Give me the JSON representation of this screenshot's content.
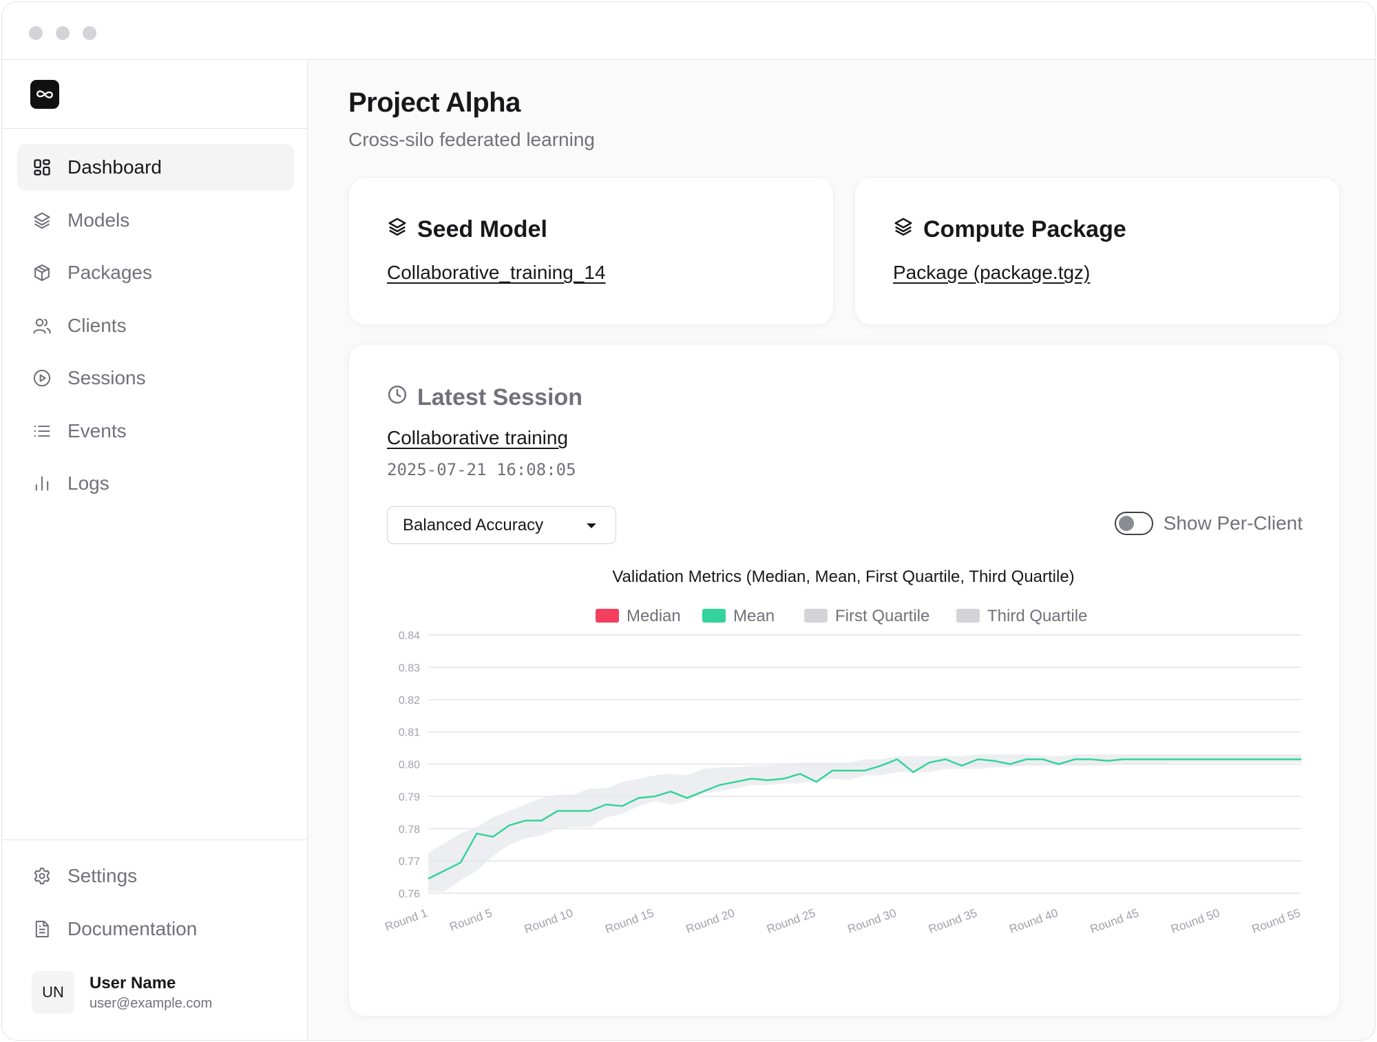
{
  "sidebar": {
    "logo_icon": "infinity-logo-icon",
    "nav": [
      {
        "label": "Dashboard",
        "icon": "dashboard-icon",
        "active": true
      },
      {
        "label": "Models",
        "icon": "layers-icon"
      },
      {
        "label": "Packages",
        "icon": "package-icon"
      },
      {
        "label": "Clients",
        "icon": "users-icon"
      },
      {
        "label": "Sessions",
        "icon": "play-circle-icon"
      },
      {
        "label": "Events",
        "icon": "list-icon"
      },
      {
        "label": "Logs",
        "icon": "bar-chart-icon"
      }
    ],
    "bottom": [
      {
        "label": "Settings",
        "icon": "gear-icon"
      },
      {
        "label": "Documentation",
        "icon": "document-icon"
      }
    ],
    "user": {
      "initials": "UN",
      "name": "User Name",
      "email": "user@example.com"
    }
  },
  "header": {
    "title": "Project Alpha",
    "subtitle": "Cross-silo federated learning"
  },
  "seed_model": {
    "title": "Seed Model",
    "link": "Collaborative_training_14"
  },
  "compute_package": {
    "title": "Compute Package",
    "link": "Package (package.tgz)"
  },
  "latest_session": {
    "title": "Latest Session",
    "link": "Collaborative training",
    "timestamp": "2025-07-21 16:08:05",
    "metric_selected": "Balanced Accuracy",
    "toggle_label": "Show Per-Client",
    "toggle_on": false
  },
  "chart_data": {
    "type": "line",
    "title": "Validation Metrics (Median, Mean, First Quartile, Third Quartile)",
    "legend": [
      {
        "name": "Median",
        "color": "#f43f5e"
      },
      {
        "name": "Mean",
        "color": "#34d399"
      },
      {
        "name": "First Quartile",
        "color": "#d4d4d8"
      },
      {
        "name": "Third Quartile",
        "color": "#d4d4d8"
      }
    ],
    "legend_placement": "top-center",
    "ylim": [
      0.76,
      0.84
    ],
    "yticks": [
      "0.84",
      "0.83",
      "0.82",
      "0.81",
      "0.80",
      "0.79",
      "0.78",
      "0.77",
      "0.76"
    ],
    "x_labels": [
      "Round 1",
      "Round 5",
      "Round 10",
      "Round 15",
      "Round 20",
      "Round 25",
      "Round 30",
      "Round 35",
      "Round 40",
      "Round 45",
      "Round 50",
      "Round 55"
    ],
    "x_label_rounds": [
      1,
      5,
      10,
      15,
      20,
      25,
      30,
      35,
      40,
      45,
      50,
      55
    ],
    "rounds": 55,
    "grid": true,
    "series": [
      {
        "name": "Mean",
        "color": "#34d399",
        "values": [
          0.7645,
          0.767,
          0.7695,
          0.7785,
          0.7775,
          0.781,
          0.7825,
          0.7825,
          0.7855,
          0.7855,
          0.7855,
          0.7875,
          0.787,
          0.7895,
          0.79,
          0.7915,
          0.7895,
          0.7915,
          0.7935,
          0.7945,
          0.7955,
          0.795,
          0.7955,
          0.797,
          0.7945,
          0.798,
          0.798,
          0.798,
          0.7995,
          0.8015,
          0.7975,
          0.8005,
          0.8015,
          0.7995,
          0.8015,
          0.801,
          0.8,
          0.8015,
          0.8015,
          0.8,
          0.8015,
          0.8015,
          0.801,
          0.8015,
          0.8015,
          0.8015,
          0.8015,
          0.8015,
          0.8015,
          0.8015,
          0.8015,
          0.8015,
          0.8015,
          0.8015,
          0.8015
        ]
      },
      {
        "name": "First Quartile",
        "color": "#e5e7eb",
        "values": [
          0.7605,
          0.7605,
          0.764,
          0.767,
          0.7715,
          0.775,
          0.777,
          0.778,
          0.78,
          0.7805,
          0.7805,
          0.7835,
          0.7845,
          0.787,
          0.7885,
          0.7875,
          0.7885,
          0.791,
          0.7915,
          0.7925,
          0.7935,
          0.7935,
          0.794,
          0.794,
          0.795,
          0.7955,
          0.795,
          0.7965,
          0.7965,
          0.7975,
          0.7975,
          0.7975,
          0.7985,
          0.7985,
          0.7985,
          0.799,
          0.799,
          0.7995,
          0.7995,
          0.7995,
          0.7995,
          0.7995,
          0.7995,
          0.8,
          0.8,
          0.8,
          0.8005,
          0.8005,
          0.8005,
          0.8005,
          0.8005,
          0.8005,
          0.8005,
          0.8005,
          0.8005
        ]
      },
      {
        "name": "Third Quartile",
        "color": "#e5e7eb",
        "values": [
          0.7725,
          0.7755,
          0.7785,
          0.7805,
          0.7835,
          0.7855,
          0.7875,
          0.7895,
          0.7905,
          0.7905,
          0.7925,
          0.7925,
          0.7945,
          0.7955,
          0.7965,
          0.797,
          0.7965,
          0.7985,
          0.799,
          0.799,
          0.7995,
          0.7995,
          0.8,
          0.8005,
          0.8005,
          0.8005,
          0.8005,
          0.8015,
          0.8015,
          0.8025,
          0.8025,
          0.8025,
          0.8025,
          0.8025,
          0.803,
          0.803,
          0.803,
          0.803,
          0.8025,
          0.8025,
          0.803,
          0.803,
          0.803,
          0.803,
          0.803,
          0.803,
          0.803,
          0.803,
          0.803,
          0.803,
          0.803,
          0.803,
          0.803,
          0.803,
          0.803
        ]
      }
    ]
  }
}
